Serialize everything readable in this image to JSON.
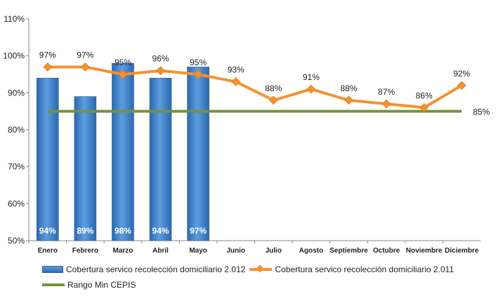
{
  "chart_data": {
    "type": "bar",
    "categories": [
      "Enero",
      "Febrero",
      "Marzo",
      "Abril",
      "Mayo",
      "Junio",
      "Julio",
      "Agosto",
      "Septiembre",
      "Octubre",
      "Noviembre",
      "Diciembre"
    ],
    "series": [
      {
        "name": "Cobertura servico recolección domiciliario 2.012",
        "type": "bar",
        "color": "#3a7cc8",
        "values": [
          94,
          89,
          98,
          94,
          97,
          null,
          null,
          null,
          null,
          null,
          null,
          null
        ],
        "labels": [
          "94%",
          "89%",
          "98%",
          "94%",
          "97%"
        ]
      },
      {
        "name": "Cobertura servico recolección domiciliario 2.011",
        "type": "line",
        "color": "#f5922f",
        "values": [
          97,
          97,
          95,
          96,
          95,
          93,
          88,
          91,
          88,
          87,
          86,
          92
        ],
        "labels": [
          "97%",
          "97%",
          "95%",
          "96%",
          "95%",
          "93%",
          "88%",
          "91%",
          "88%",
          "87%",
          "86%",
          "92%"
        ]
      },
      {
        "name": "Rango Min CEPIS",
        "type": "line",
        "color": "#76923c",
        "values": [
          85,
          85,
          85,
          85,
          85,
          85,
          85,
          85,
          85,
          85,
          85,
          85
        ],
        "end_label": "85%"
      }
    ],
    "ylim": [
      50,
      110
    ],
    "yticks": [
      "50%",
      "60%",
      "70%",
      "80%",
      "90%",
      "100%",
      "110%"
    ],
    "ytick_values": [
      50,
      60,
      70,
      80,
      90,
      100,
      110
    ],
    "grid": false,
    "legend_position": "bottom"
  }
}
